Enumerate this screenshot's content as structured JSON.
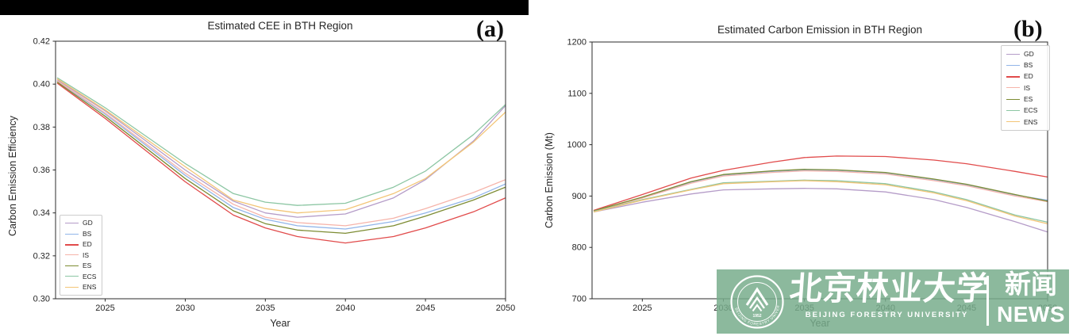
{
  "page": {
    "background": "#ffffff",
    "top_bar_color": "#000000"
  },
  "chart_data": [
    {
      "type": "line",
      "title": "Estimated CEE in BTH Region",
      "tag": "(a)",
      "xlabel": "Year",
      "ylabel": "Carbon Emission Efficiency",
      "xlim": [
        2021.9,
        2050
      ],
      "ylim": [
        0.3,
        0.42
      ],
      "grid": false,
      "legend_position": "lower-left",
      "xticks": [
        "2025",
        "2030",
        "2035",
        "2040",
        "2045",
        "2050"
      ],
      "xtick_years": [
        2025,
        2030,
        2035,
        2040,
        2045,
        2050
      ],
      "yticks": [
        "0.30",
        "0.32",
        "0.34",
        "0.36",
        "0.38",
        "0.40",
        "0.42"
      ],
      "ytick_values": [
        0.3,
        0.32,
        0.34,
        0.36,
        0.38,
        0.4,
        0.42
      ],
      "x": [
        2022,
        2025,
        2030,
        2033,
        2035,
        2037,
        2040,
        2043,
        2045,
        2048,
        2050
      ],
      "series": [
        {
          "name": "GD",
          "color": "#b59cc8",
          "values": [
            0.402,
            0.3875,
            0.36,
            0.3455,
            0.34,
            0.338,
            0.3395,
            0.347,
            0.3555,
            0.3735,
            0.39
          ]
        },
        {
          "name": "BS",
          "color": "#92b5e9",
          "values": [
            0.4013,
            0.386,
            0.3575,
            0.3425,
            0.337,
            0.334,
            0.3325,
            0.336,
            0.34,
            0.347,
            0.3535
          ]
        },
        {
          "name": "ED",
          "color": "#e14b4b",
          "values": [
            0.4005,
            0.384,
            0.3545,
            0.339,
            0.333,
            0.329,
            0.326,
            0.329,
            0.333,
            0.3405,
            0.347
          ]
        },
        {
          "name": "IS",
          "color": "#f6b4aa",
          "values": [
            0.4015,
            0.3865,
            0.3585,
            0.344,
            0.338,
            0.3355,
            0.334,
            0.3375,
            0.342,
            0.3495,
            0.3555
          ]
        },
        {
          "name": "ES",
          "color": "#7d8c33",
          "values": [
            0.401,
            0.385,
            0.356,
            0.341,
            0.335,
            0.332,
            0.3305,
            0.334,
            0.3385,
            0.346,
            0.352
          ]
        },
        {
          "name": "ECS",
          "color": "#8cc6a3",
          "values": [
            0.403,
            0.389,
            0.363,
            0.349,
            0.345,
            0.3435,
            0.3445,
            0.352,
            0.3595,
            0.3765,
            0.3905
          ]
        },
        {
          "name": "ENS",
          "color": "#f3c577",
          "values": [
            0.4025,
            0.388,
            0.3615,
            0.346,
            0.342,
            0.34,
            0.3415,
            0.349,
            0.356,
            0.373,
            0.387
          ]
        }
      ]
    },
    {
      "type": "line",
      "title": "Estimated Carbon Emission in BTH Region",
      "tag": "(b)",
      "xlabel": "Year",
      "ylabel": "Carbon Emission (Mt)",
      "xlim": [
        2021.9,
        2050
      ],
      "ylim": [
        700,
        1200
      ],
      "grid": false,
      "legend_position": "upper-right",
      "xticks": [
        "2025",
        "2030",
        "2035",
        "2040",
        "2045",
        "2050"
      ],
      "xtick_years": [
        2025,
        2030,
        2035,
        2040,
        2045,
        2050
      ],
      "yticks": [
        "700",
        "800",
        "900",
        "1000",
        "1100",
        "1200"
      ],
      "ytick_values": [
        700,
        800,
        900,
        1000,
        1100,
        1200
      ],
      "x": [
        2022,
        2025,
        2028,
        2030,
        2033,
        2035,
        2037,
        2040,
        2043,
        2045,
        2048,
        2050
      ],
      "series": [
        {
          "name": "GD",
          "color": "#b59cc8",
          "values": [
            869,
            888,
            904,
            912,
            914,
            915,
            914,
            908,
            893,
            878,
            850,
            830
          ]
        },
        {
          "name": "BS",
          "color": "#92b5e9",
          "values": [
            871,
            897,
            927,
            941,
            948,
            951,
            950,
            945,
            932,
            922,
            902,
            892
          ]
        },
        {
          "name": "ED",
          "color": "#e14b4b",
          "values": [
            872,
            903,
            935,
            950,
            966,
            975,
            978,
            977,
            970,
            963,
            948,
            937
          ]
        },
        {
          "name": "IS",
          "color": "#f6b4aa",
          "values": [
            870,
            896,
            925,
            939,
            946,
            949,
            948,
            943,
            930,
            920,
            900,
            889
          ]
        },
        {
          "name": "ES",
          "color": "#7d8c33",
          "values": [
            871,
            898,
            928,
            942,
            949,
            952,
            951,
            946,
            933,
            923,
            903,
            890
          ]
        },
        {
          "name": "ECS",
          "color": "#8cc6a3",
          "values": [
            870,
            893,
            913,
            926,
            929,
            931,
            930,
            924,
            908,
            893,
            863,
            849
          ]
        },
        {
          "name": "ENS",
          "color": "#f3c577",
          "values": [
            869,
            892,
            912,
            924,
            928,
            930,
            928,
            922,
            906,
            891,
            861,
            846
          ]
        }
      ]
    }
  ],
  "watermark": {
    "chinese_name": "北京林业大学",
    "english_name": "BEIJING FORESTRY UNIVERSITY",
    "news_cn": "新闻",
    "news_en": "NEWS",
    "seal_year": "1952",
    "seal_ring_text": "BEIJING FORESTRY UNIVERSITY",
    "banner_color": "#78ad8c"
  }
}
